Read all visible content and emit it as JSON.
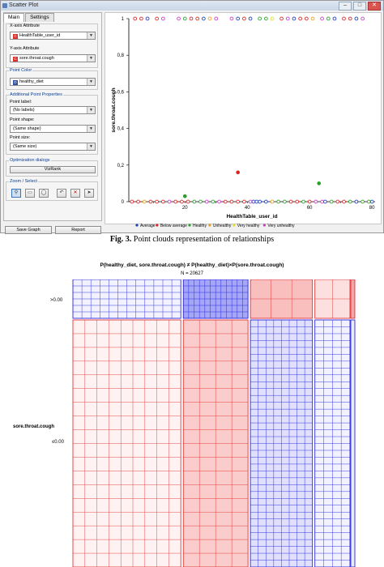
{
  "window": {
    "title": "Scatter Plot"
  },
  "tabs": [
    {
      "label": "Main"
    },
    {
      "label": "Settings"
    }
  ],
  "panel": {
    "x_attr_label": "X-axis Attribute",
    "x_attr_value": "HealthTable_user_id",
    "y_attr_label": "Y-axis Attribute",
    "y_attr_value": "sore.throat.cough",
    "color_label": "Point Color",
    "color_value": "healthy_diet",
    "props_title": "Additional Point Properties",
    "point_label_label": "Point label:",
    "point_label_value": "(No labels)",
    "point_shape_label": "Point shape:",
    "point_shape_value": "(Same shape)",
    "point_size_label": "Point size:",
    "point_size_value": "(Same size)",
    "opt_title": "Optimization dialogs",
    "vizrank_label": "VizRank",
    "zoom_title": "Zoom / Select",
    "zoom_icons": [
      "zoom-icon",
      "rect-select-icon",
      "lasso-icon",
      "undo-icon",
      "remove-icon",
      "send-icon"
    ],
    "zoom_glyphs": [
      "⚲",
      "▭",
      "◯",
      "↶",
      "✕",
      "➤"
    ]
  },
  "buttons": {
    "save": "Save Graph",
    "report": "Report"
  },
  "chart_data": [
    {
      "type": "scatter",
      "title": "",
      "xlabel": "HealthTable_user_id",
      "ylabel": "sore.throat.cough",
      "xlim": [
        2,
        81
      ],
      "ylim": [
        0,
        1
      ],
      "xticks": [
        20,
        40,
        60,
        80
      ],
      "yticks": [
        0,
        0.2,
        0.4,
        0.6,
        0.8,
        1
      ],
      "ytick_labels": [
        "0",
        "0,2",
        "0,4",
        "0,6",
        "0,8",
        "1"
      ],
      "legend_position": "bottom",
      "legend": [
        {
          "name": "Average",
          "color": "#1f3fbf"
        },
        {
          "name": "Below average",
          "color": "#d62728"
        },
        {
          "name": "Healthy",
          "color": "#2ca02c"
        },
        {
          "name": "Unhealthy",
          "color": "#e6a020"
        },
        {
          "name": "Very healthy",
          "color": "#e8e020"
        },
        {
          "name": "Very unhealthy",
          "color": "#c83cc8"
        }
      ],
      "points": [
        {
          "x": 4,
          "y": 1,
          "c": 1
        },
        {
          "x": 6,
          "y": 1,
          "c": 1
        },
        {
          "x": 8,
          "y": 1,
          "c": 0
        },
        {
          "x": 11,
          "y": 1,
          "c": 1
        },
        {
          "x": 13,
          "y": 1,
          "c": 5
        },
        {
          "x": 18,
          "y": 1,
          "c": 5
        },
        {
          "x": 20,
          "y": 1,
          "c": 2
        },
        {
          "x": 22,
          "y": 1,
          "c": 1
        },
        {
          "x": 24,
          "y": 1,
          "c": 1
        },
        {
          "x": 26,
          "y": 1,
          "c": 0
        },
        {
          "x": 28,
          "y": 1,
          "c": 3
        },
        {
          "x": 30,
          "y": 1,
          "c": 5
        },
        {
          "x": 35,
          "y": 1,
          "c": 5
        },
        {
          "x": 37,
          "y": 1,
          "c": 0
        },
        {
          "x": 39,
          "y": 1,
          "c": 1
        },
        {
          "x": 41,
          "y": 1,
          "c": 0
        },
        {
          "x": 44,
          "y": 1,
          "c": 2
        },
        {
          "x": 46,
          "y": 1,
          "c": 2
        },
        {
          "x": 48,
          "y": 1,
          "c": 4
        },
        {
          "x": 51,
          "y": 1,
          "c": 1
        },
        {
          "x": 53,
          "y": 1,
          "c": 5
        },
        {
          "x": 55,
          "y": 1,
          "c": 0
        },
        {
          "x": 57,
          "y": 1,
          "c": 1
        },
        {
          "x": 59,
          "y": 1,
          "c": 1
        },
        {
          "x": 61,
          "y": 1,
          "c": 3
        },
        {
          "x": 64,
          "y": 1,
          "c": 5
        },
        {
          "x": 66,
          "y": 1,
          "c": 2
        },
        {
          "x": 68,
          "y": 1,
          "c": 0
        },
        {
          "x": 71,
          "y": 1,
          "c": 1
        },
        {
          "x": 73,
          "y": 1,
          "c": 1
        },
        {
          "x": 75,
          "y": 1,
          "c": 0
        },
        {
          "x": 77,
          "y": 1,
          "c": 5
        },
        {
          "x": 20,
          "y": 0.03,
          "c": 2
        },
        {
          "x": 37,
          "y": 0.16,
          "c": 1
        },
        {
          "x": 63,
          "y": 0.1,
          "c": 2
        },
        {
          "x": 3,
          "y": 0,
          "c": 1
        },
        {
          "x": 5,
          "y": 0,
          "c": 1
        },
        {
          "x": 7,
          "y": 0,
          "c": 3
        },
        {
          "x": 9,
          "y": 0,
          "c": 1
        },
        {
          "x": 11,
          "y": 0,
          "c": 1
        },
        {
          "x": 13,
          "y": 0,
          "c": 1
        },
        {
          "x": 15,
          "y": 0,
          "c": 5
        },
        {
          "x": 17,
          "y": 0,
          "c": 1
        },
        {
          "x": 19,
          "y": 0,
          "c": 1
        },
        {
          "x": 21,
          "y": 0,
          "c": 1
        },
        {
          "x": 23,
          "y": 0,
          "c": 2
        },
        {
          "x": 25,
          "y": 0,
          "c": 2
        },
        {
          "x": 27,
          "y": 0,
          "c": 5
        },
        {
          "x": 29,
          "y": 0,
          "c": 2
        },
        {
          "x": 31,
          "y": 0,
          "c": 5
        },
        {
          "x": 33,
          "y": 0,
          "c": 1
        },
        {
          "x": 35,
          "y": 0,
          "c": 1
        },
        {
          "x": 37,
          "y": 0,
          "c": 1
        },
        {
          "x": 39,
          "y": 0,
          "c": 1
        },
        {
          "x": 41,
          "y": 0,
          "c": 5
        },
        {
          "x": 42,
          "y": 0,
          "c": 0
        },
        {
          "x": 43,
          "y": 0,
          "c": 0
        },
        {
          "x": 44,
          "y": 0,
          "c": 0
        },
        {
          "x": 46,
          "y": 0,
          "c": 0
        },
        {
          "x": 48,
          "y": 0,
          "c": 3
        },
        {
          "x": 50,
          "y": 0,
          "c": 2
        },
        {
          "x": 52,
          "y": 0,
          "c": 2
        },
        {
          "x": 54,
          "y": 0,
          "c": 1
        },
        {
          "x": 56,
          "y": 0,
          "c": 1
        },
        {
          "x": 58,
          "y": 0,
          "c": 2
        },
        {
          "x": 60,
          "y": 0,
          "c": 1
        },
        {
          "x": 62,
          "y": 0,
          "c": 5
        },
        {
          "x": 64,
          "y": 0,
          "c": 5
        },
        {
          "x": 65,
          "y": 0,
          "c": 0
        },
        {
          "x": 67,
          "y": 0,
          "c": 2
        },
        {
          "x": 69,
          "y": 0,
          "c": 1
        },
        {
          "x": 71,
          "y": 0,
          "c": 1
        },
        {
          "x": 73,
          "y": 0,
          "c": 2
        },
        {
          "x": 75,
          "y": 0,
          "c": 0
        },
        {
          "x": 77,
          "y": 0,
          "c": 2
        },
        {
          "x": 79,
          "y": 0,
          "c": 2
        },
        {
          "x": 80,
          "y": 0,
          "c": 0
        }
      ]
    },
    {
      "type": "mosaic",
      "title": "P(healthy_diet, sore.throat.cough) ≠ P(healthy_diet)×P(sore.throat.cough)",
      "subtitle": "N = 20627",
      "row_var": "sore.throat.cough",
      "row_labels": [
        ">0.00",
        "≤0.00"
      ],
      "row_fractions": [
        0.09,
        0.91
      ],
      "col_fractions": [
        0.4,
        0.24,
        0.23,
        0.13
      ],
      "tiles": [
        [
          {
            "color": "blue",
            "shade": 0.05,
            "cols": 12,
            "rows": 6
          },
          {
            "color": "blue",
            "shade": 0.35,
            "cols": 12,
            "rows": 6
          },
          {
            "color": "red",
            "shade": 0.25,
            "cols": 3,
            "rows": 2
          },
          {
            "color": "red",
            "shade": 0.12,
            "cols": 2,
            "rows": 2
          }
        ],
        [
          {
            "color": "red",
            "shade": 0.05,
            "cols": 9,
            "rows": 18
          },
          {
            "color": "red",
            "shade": 0.2,
            "cols": 4,
            "rows": 18
          },
          {
            "color": "blue",
            "shade": 0.12,
            "cols": 8,
            "rows": 36
          },
          {
            "color": "blue",
            "shade": 0.05,
            "cols": 4,
            "rows": 36
          }
        ]
      ],
      "extra_col_fraction": 0.013
    }
  ],
  "caption": {
    "fig": "Fig. 3.",
    "text": " Point clouds representation of relationships"
  }
}
